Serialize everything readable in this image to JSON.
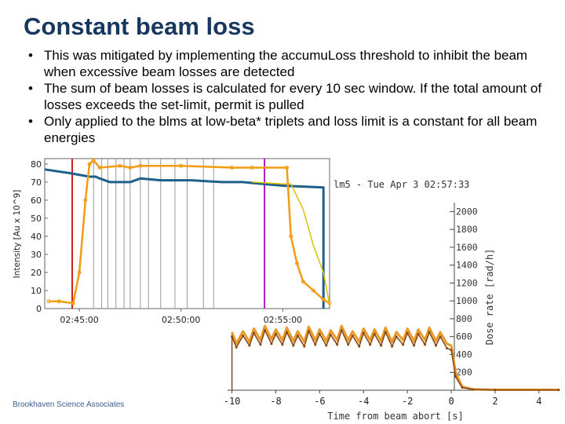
{
  "slide": {
    "title": "Constant beam loss",
    "bullets": [
      "This was mitigated by implementing the accumuLoss threshold to inhibit the beam when excessive beam losses are detected",
      "The sum of beam losses is calculated for every 10 sec window. If the total amount of losses exceeds the set-limit, permit is pulled",
      "Only applied to the blms at low-beta* triplets and loss limit is a constant for all beam energies"
    ],
    "footer": "Brookhaven Science Associates"
  },
  "colors": {
    "title": "#17375e",
    "intensity_blue": "#1f5f8b",
    "intensity_teal": "#2a7a8c",
    "intensity_orange": "#f39c12",
    "intensity_yellow": "#e0c000",
    "dose_orange": "#e89a2a",
    "dose_brown": "#8b4a14",
    "marker_red": "#d62020",
    "marker_purple": "#b020c0",
    "marker_grey": "#999999"
  },
  "chart_data": [
    {
      "type": "line",
      "ylabel": "Intensity [Au x 10^9]",
      "yticks": [
        0,
        10,
        20,
        30,
        40,
        50,
        60,
        70,
        80
      ],
      "ylim": [
        0,
        83
      ],
      "xticks": [
        "02:45:00",
        "02:50:00",
        "02:55:00"
      ],
      "xlim_min": [
        43.3,
        57.3
      ],
      "series": [
        {
          "color_key": "intensity_blue",
          "x": [
            43.3,
            44.5,
            45.5,
            45.8,
            46.0,
            46.5,
            47.5,
            48.0,
            49.0,
            50.5,
            52.0,
            53.0,
            55.0,
            57.0,
            57.0
          ],
          "y": [
            77,
            75,
            73,
            73,
            72,
            70,
            70,
            72,
            71,
            71,
            70,
            70,
            68,
            67,
            0
          ]
        },
        {
          "color_key": "intensity_orange",
          "x": [
            43.5,
            44.0,
            44.7,
            45.0,
            45.3,
            45.5,
            45.7,
            46.0,
            47.0,
            47.5,
            48.0,
            50.0,
            52.5,
            53.5,
            55.2,
            55.4,
            55.7,
            56.0,
            56.5,
            57.0,
            57.3
          ],
          "y": [
            4,
            4,
            3,
            20,
            60,
            80,
            82,
            78,
            79,
            78,
            79,
            79,
            78,
            78,
            78,
            40,
            25,
            15,
            10,
            5,
            3
          ]
        },
        {
          "color_key": "intensity_yellow",
          "x": [
            53.5,
            55.0,
            55.4,
            56.0,
            56.5,
            57.0,
            57.3
          ],
          "y": [
            70,
            69,
            69,
            55,
            35,
            20,
            2
          ]
        }
      ],
      "markers": [
        {
          "x": 44.65,
          "color_key": "marker_red"
        },
        {
          "x": 45.7,
          "color_key": "marker_grey"
        },
        {
          "x": 46.1,
          "color_key": "marker_grey"
        },
        {
          "x": 46.4,
          "color_key": "marker_grey"
        },
        {
          "x": 46.8,
          "color_key": "marker_grey"
        },
        {
          "x": 47.2,
          "color_key": "marker_grey"
        },
        {
          "x": 47.5,
          "color_key": "marker_grey"
        },
        {
          "x": 48.0,
          "color_key": "marker_grey"
        },
        {
          "x": 48.4,
          "color_key": "marker_grey"
        },
        {
          "x": 49.0,
          "color_key": "marker_grey"
        },
        {
          "x": 49.7,
          "color_key": "marker_grey"
        },
        {
          "x": 50.3,
          "color_key": "marker_grey"
        },
        {
          "x": 51.1,
          "color_key": "marker_grey"
        },
        {
          "x": 51.6,
          "color_key": "marker_grey"
        },
        {
          "x": 54.1,
          "color_key": "marker_purple"
        }
      ]
    },
    {
      "type": "line",
      "header": "lm5 - Tue Apr  3 02:57:33",
      "ylabel": "Dose rate [rad/h]",
      "xlabel": "Time from beam abort [s]",
      "yticks": [
        200,
        400,
        600,
        800,
        1000,
        1200,
        1400,
        1600,
        1800,
        2000
      ],
      "ylim": [
        0,
        2100
      ],
      "xticks": [
        -10,
        -8,
        -6,
        -4,
        -2,
        0,
        2,
        4
      ],
      "xlim": [
        -10.2,
        4.9
      ],
      "series": [
        {
          "color_key": "dose_orange",
          "x": [
            -10,
            -9.8,
            -9.5,
            -9.2,
            -9.0,
            -8.7,
            -8.5,
            -8.2,
            -8.0,
            -7.7,
            -7.5,
            -7.2,
            -7.0,
            -6.7,
            -6.5,
            -6.2,
            -6.0,
            -5.7,
            -5.5,
            -5.2,
            -5.0,
            -4.7,
            -4.5,
            -4.2,
            -4.0,
            -3.7,
            -3.5,
            -3.2,
            -3.0,
            -2.7,
            -2.5,
            -2.2,
            -2.0,
            -1.7,
            -1.5,
            -1.2,
            -1.0,
            -0.7,
            -0.5,
            -0.2,
            0.0,
            0.2,
            0.5,
            1.0,
            2.0,
            4.9
          ],
          "y": [
            650,
            520,
            660,
            540,
            690,
            560,
            720,
            570,
            680,
            560,
            700,
            550,
            660,
            540,
            710,
            560,
            680,
            550,
            670,
            560,
            720,
            560,
            660,
            540,
            690,
            560,
            680,
            550,
            700,
            540,
            650,
            560,
            690,
            550,
            680,
            560,
            700,
            550,
            650,
            520,
            500,
            200,
            40,
            10,
            5,
            5
          ]
        },
        {
          "color_key": "dose_brown",
          "x": [
            -10,
            -9.8,
            -9.5,
            -9.2,
            -9.0,
            -8.7,
            -8.5,
            -8.2,
            -8.0,
            -7.7,
            -7.5,
            -7.2,
            -7.0,
            -6.7,
            -6.5,
            -6.2,
            -6.0,
            -5.7,
            -5.5,
            -5.2,
            -5.0,
            -4.7,
            -4.5,
            -4.2,
            -4.0,
            -3.7,
            -3.5,
            -3.2,
            -3.0,
            -2.7,
            -2.5,
            -2.2,
            -2.0,
            -1.7,
            -1.5,
            -1.2,
            -1.0,
            -0.7,
            -0.5,
            -0.2,
            0.0,
            0.2,
            0.5,
            1.0,
            2.0,
            4.9
          ],
          "y": [
            600,
            480,
            610,
            500,
            640,
            510,
            670,
            520,
            630,
            510,
            650,
            500,
            610,
            490,
            660,
            510,
            630,
            500,
            620,
            510,
            670,
            510,
            610,
            490,
            640,
            510,
            630,
            500,
            650,
            490,
            600,
            510,
            640,
            500,
            630,
            510,
            650,
            500,
            600,
            470,
            450,
            150,
            30,
            8,
            3,
            3
          ]
        }
      ]
    }
  ]
}
